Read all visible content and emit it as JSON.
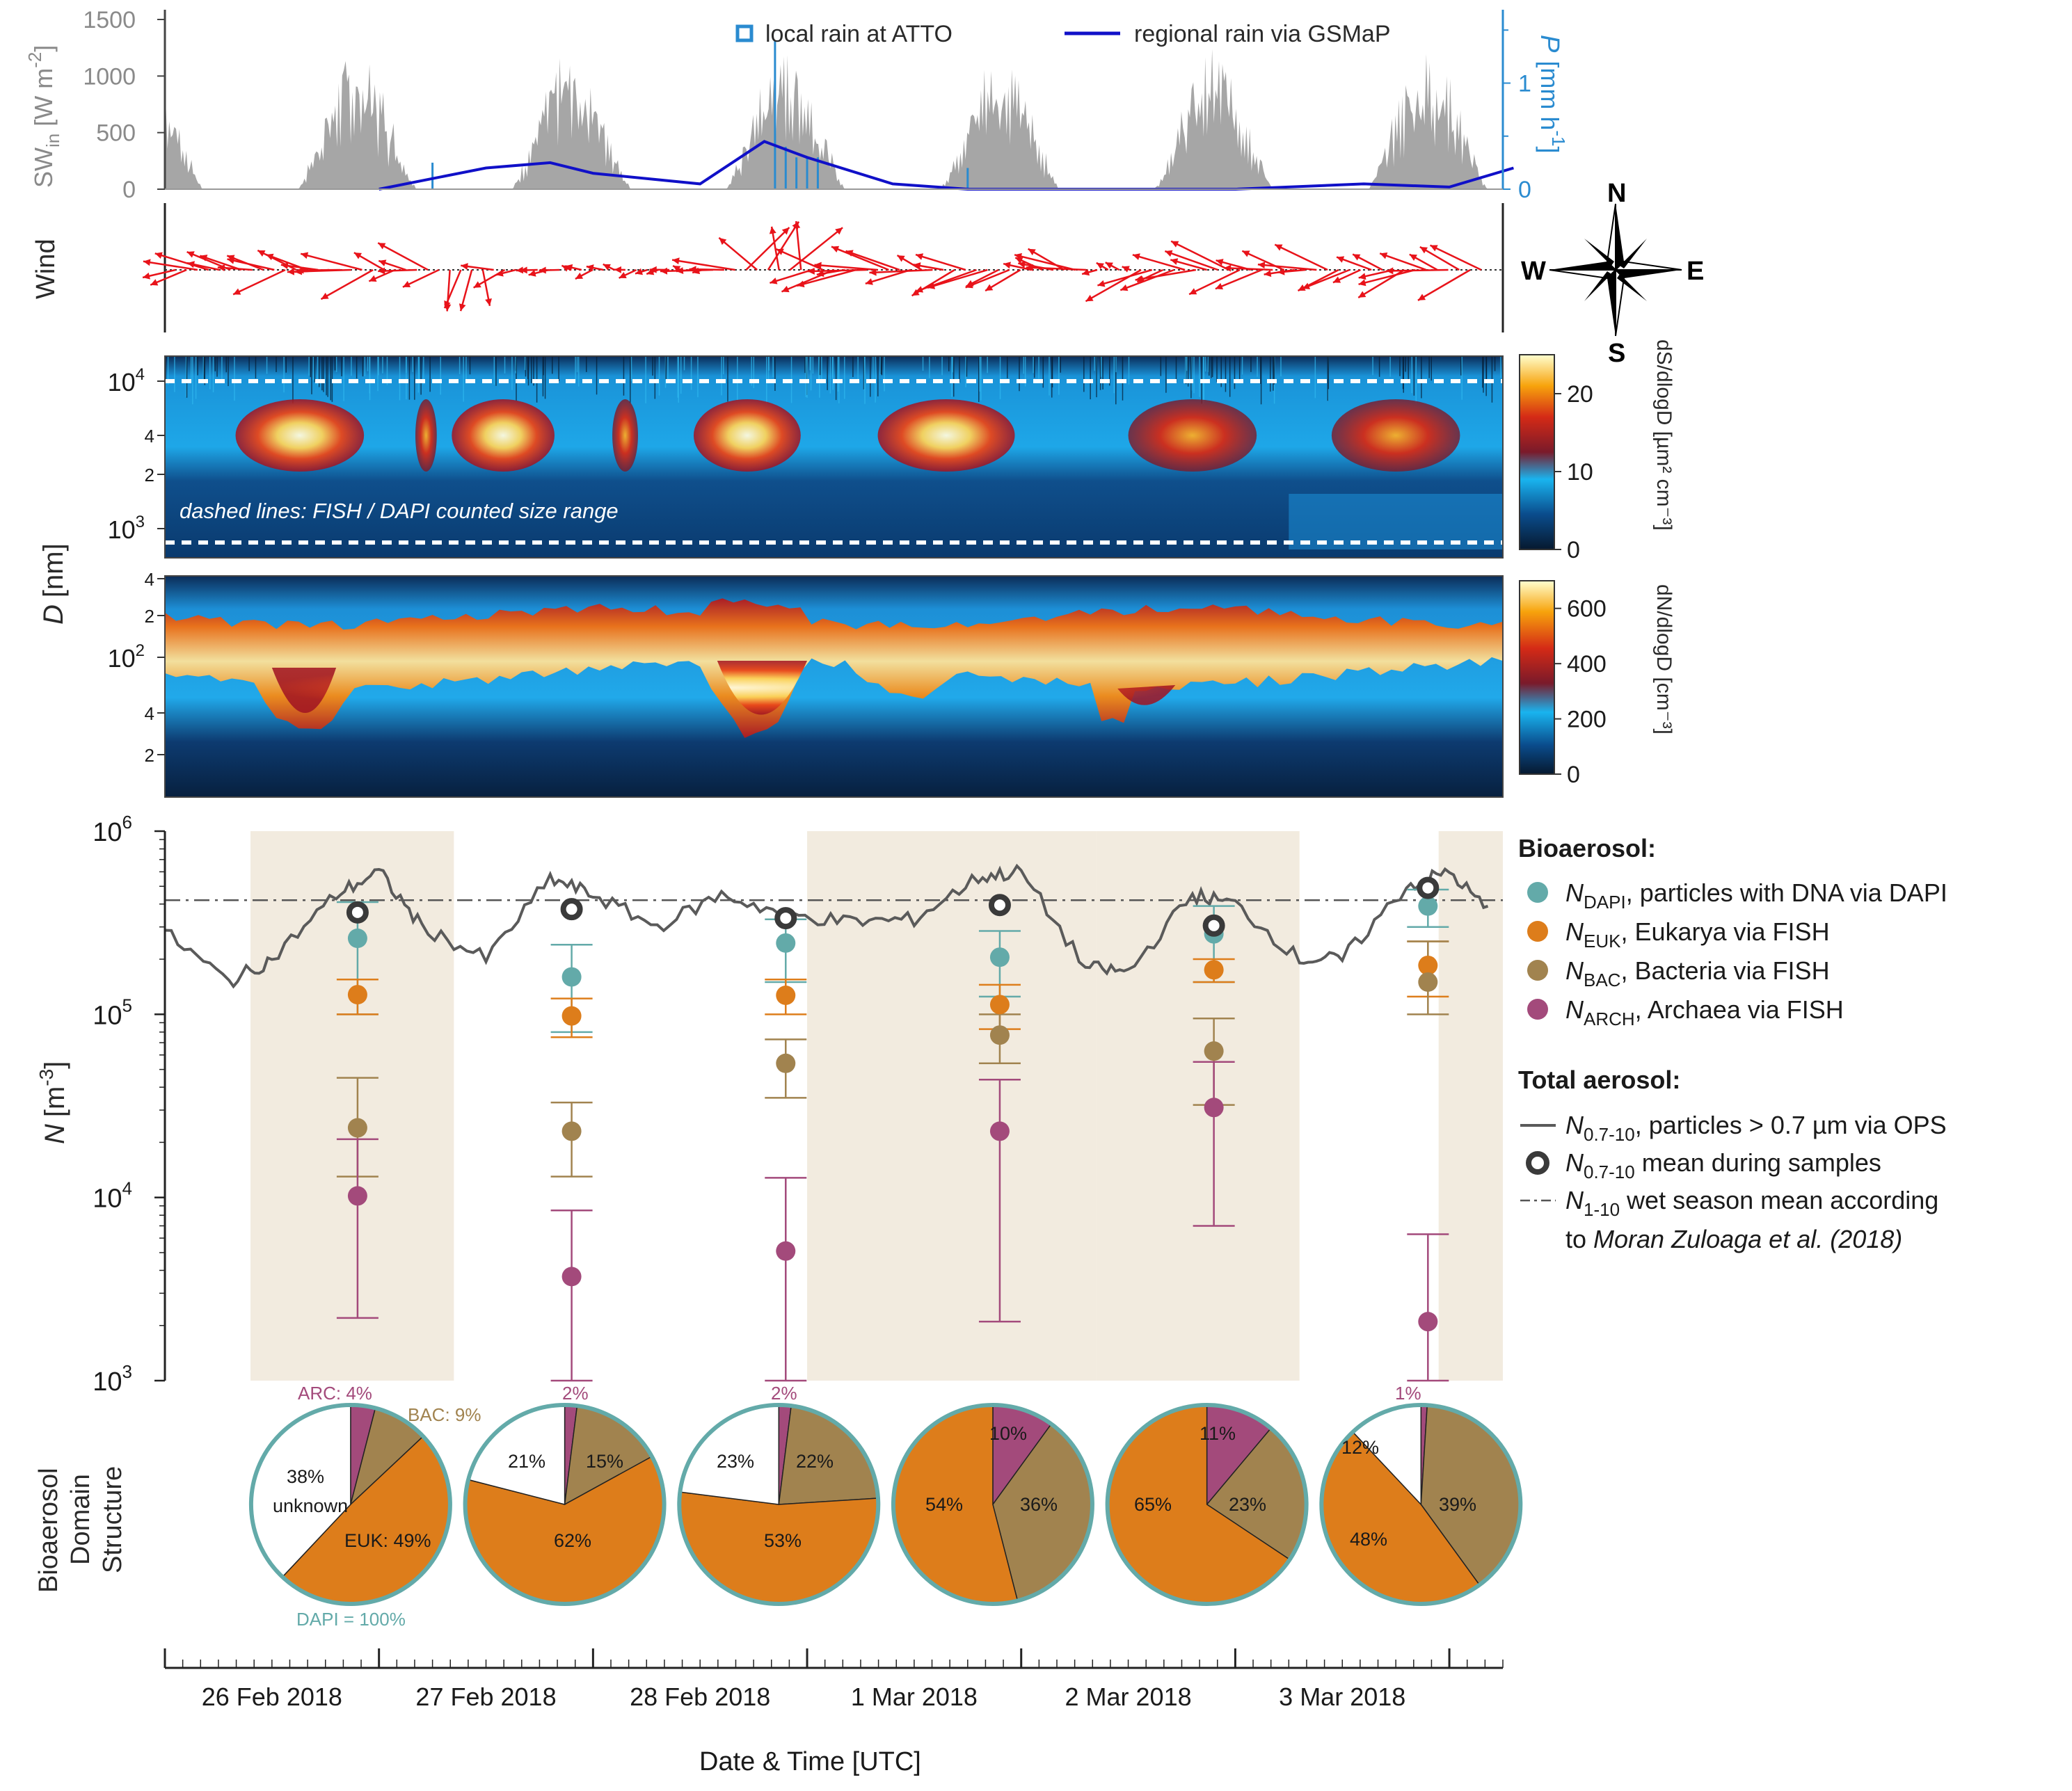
{
  "colors": {
    "swin": "#a6a6a6",
    "gsmap": "#1010c8",
    "rain": "#2a8bd0",
    "wind": "#e8131a",
    "shade": "#f2ebdf",
    "dapi": "#63aaa9",
    "euk": "#dd7d1b",
    "bac": "#a1834f",
    "arch": "#a34a7b",
    "unknown": "#ffffff",
    "ops": "#5a5a5a",
    "pieRim": "#63aaa9",
    "text": "#2a2a2a"
  },
  "panels": {
    "top": {
      "ylabel_main": "SW",
      "ylabel_sub": "in",
      "ylabel_unit": "[W m",
      "ylabel_exp": "-2",
      "ylabel_close": "]",
      "yticks": [
        "0",
        "500",
        "1000",
        "1500"
      ],
      "ylabel_right": "P",
      "ylabel_right_unit": "[mm h",
      "ylabel_right_exp": "-1",
      "ylabel_right_close": "]",
      "yticks_right": [
        "0",
        "1"
      ],
      "legend": {
        "rain": "local rain at ATTO",
        "gsmap": "regional rain via GSMaP"
      }
    },
    "wind": {
      "label": "Wind",
      "compass": {
        "n": "N",
        "s": "S",
        "e": "E",
        "w": "W"
      }
    },
    "ds": {
      "yticks": [
        {
          "t": "10",
          "e": "4"
        },
        {
          "t": "4",
          "e": ""
        },
        {
          "t": "2",
          "e": ""
        },
        {
          "t": "10",
          "e": "3"
        }
      ],
      "cbar_ticks": [
        "0",
        "10",
        "20"
      ],
      "cbar_label": "dS/dlogD [µm² cm⁻³]",
      "note": "dashed lines:  FISH / DAPI counted size range"
    },
    "d_axis": {
      "label": "D",
      "unit": "[nm]"
    },
    "dn": {
      "yticks": [
        {
          "t": "4",
          "e": ""
        },
        {
          "t": "2",
          "e": ""
        },
        {
          "t": "10",
          "e": "2"
        },
        {
          "t": "4",
          "e": ""
        },
        {
          "t": "2",
          "e": ""
        }
      ],
      "cbar_ticks": [
        "0",
        "200",
        "400",
        "600"
      ],
      "cbar_label": "dN/dlogD [cm⁻³]"
    },
    "n": {
      "ylabel": "N",
      "ylabel_unit": "[m",
      "ylabel_exp": "-3",
      "ylabel_close": "]",
      "yticks": [
        {
          "t": "10",
          "e": "3"
        },
        {
          "t": "10",
          "e": "4"
        },
        {
          "t": "10",
          "e": "5"
        },
        {
          "t": "10",
          "e": "6"
        }
      ]
    },
    "pies_label": [
      "Bioaerosol",
      "Domain",
      "Structure"
    ]
  },
  "xaxis": {
    "title": "Date & Time [UTC]",
    "ticks": [
      "26 Feb 2018",
      "27 Feb 2018",
      "28 Feb 2018",
      "1 Mar 2018",
      "2 Mar 2018",
      "3 Mar 2018"
    ]
  },
  "legend": {
    "bio_title": "Bioaerosol:",
    "dapi": {
      "sym": "N",
      "sub": "DAPI",
      "text": ", particles with DNA via DAPI"
    },
    "euk": {
      "sym": "N",
      "sub": "EUK",
      "text": ", Eukarya via FISH"
    },
    "bac": {
      "sym": "N",
      "sub": "BAC",
      "text": ", Bacteria via FISH"
    },
    "arch": {
      "sym": "N",
      "sub": "ARCH",
      "text": ", Archaea via FISH"
    },
    "total_title": "Total aerosol:",
    "ops": {
      "sym": "N",
      "sub": "0.7-10",
      "text": ", particles > 0.7 µm via OPS"
    },
    "opsmean": {
      "sym": "N",
      "sub": "0.7-10",
      "text": " mean during samples"
    },
    "wet": {
      "sym": "N",
      "sub": "1-10",
      "text": " wet season mean according"
    },
    "wet2": {
      "text": "to ",
      "ref": "Moran Zuloaga et al. (2018)"
    }
  },
  "pie_labels": {
    "arc": "ARC: 4%",
    "bac": "BAC: 9%",
    "unknown1": "38%",
    "unknown2": "unknown",
    "euk": "EUK: 49%",
    "dapi": "DAPI = 100%",
    "top2": "2%",
    "top3": "2%",
    "top6": "1%",
    "p2u": "21%",
    "p2b": "15%",
    "p2e": "62%",
    "p3u": "23%",
    "p3b": "22%",
    "p3e": "53%",
    "p4a": "10%",
    "p4e": "54%",
    "p4b": "36%",
    "p5a": "11%",
    "p5e": "65%",
    "p5b": "23%",
    "p6u": "12%",
    "p6e": "48%",
    "p6b": "39%"
  },
  "chart_data": [
    {
      "type": "area",
      "panel": "SW_in and precipitation",
      "series": [
        {
          "name": "SW_in",
          "daily_peaks_W_m2": [
            1250,
            1250,
            1250,
            1250,
            1250,
            1250,
            1250
          ]
        },
        {
          "name": "regional rain via GSMaP",
          "units": "mm h-1",
          "x_days": [
            1.0,
            1.5,
            1.8,
            2.0,
            2.5,
            2.8,
            3.0,
            3.4,
            3.75,
            4.5,
            5.0,
            5.6,
            6.0,
            6.3
          ],
          "y": [
            0,
            0.2,
            0.25,
            0.15,
            0.05,
            0.45,
            0.3,
            0.05,
            0,
            0,
            0,
            0.05,
            0.02,
            0.2
          ]
        },
        {
          "name": "local rain at ATTO",
          "units": "mm h-1",
          "events_days": [
            1.25,
            2.85,
            2.9,
            2.95,
            3.0,
            3.05,
            3.75
          ],
          "values": [
            0.25,
            1.4,
            0.4,
            0.3,
            0.3,
            0.3,
            0.2
          ]
        }
      ],
      "ylim": [
        0,
        1500
      ],
      "ylim_right": [
        0,
        1.6
      ]
    },
    {
      "type": "heatmap",
      "panel": "dS/dlogD",
      "ylim_nm": [
        600,
        15000
      ],
      "clim": [
        0,
        25
      ],
      "note": "dashed lines: FISH / DAPI counted size range"
    },
    {
      "type": "heatmap",
      "panel": "dN/dlogD",
      "ylim_nm": [
        10,
        400
      ],
      "clim": [
        0,
        700
      ]
    },
    {
      "type": "scatter",
      "panel": "Bioaerosol number concentrations",
      "yscale": "log",
      "ylim": [
        1000,
        1000000
      ],
      "samples_center_day": [
        0.9,
        1.9,
        2.9,
        3.9,
        4.9,
        5.9
      ],
      "sample_windows_day": [
        [
          0.4,
          1.35
        ],
        [
          3.0,
          4.35
        ],
        [
          4.35,
          5.3
        ],
        [
          5.95,
          6.25
        ]
      ],
      "series": [
        {
          "name": "N_DAPI",
          "values": [
            260000,
            160000,
            245000,
            205000,
            275000,
            390000
          ],
          "err_low": [
            100000,
            80000,
            150000,
            125000,
            150000,
            300000
          ],
          "err_high": [
            410000,
            240000,
            330000,
            285000,
            390000,
            480000
          ]
        },
        {
          "name": "N_EUK",
          "values": [
            128000,
            98000,
            127000,
            113000,
            175000,
            185000
          ],
          "err_low": [
            100000,
            75000,
            100000,
            83000,
            150000,
            125000
          ],
          "err_high": [
            155000,
            122000,
            155000,
            145000,
            200000,
            250000
          ]
        },
        {
          "name": "N_BAC",
          "values": [
            24000,
            23000,
            54000,
            77000,
            63000,
            150000
          ],
          "err_low": [
            13000,
            13000,
            35000,
            54000,
            32000,
            100000
          ],
          "err_high": [
            45000,
            33000,
            73000,
            100000,
            95000,
            250000
          ]
        },
        {
          "name": "N_ARCH",
          "values": [
            10200,
            3700,
            5100,
            23000,
            31000,
            2100
          ],
          "err_low": [
            2200,
            1000,
            1000,
            2100,
            7000,
            1000
          ],
          "err_high": [
            20800,
            8500,
            12800,
            44000,
            55000,
            6300
          ]
        },
        {
          "name": "N_0.7-10 mean during samples",
          "values": [
            360000,
            375000,
            335000,
            395000,
            305000,
            490000
          ]
        },
        {
          "name": "N_1-10 wet season mean",
          "values": [
            420000
          ]
        }
      ],
      "ops_series": {
        "name": "N_0.7-10 OPS",
        "x_days": [
          0,
          0.3,
          0.5,
          0.8,
          1.0,
          1.2,
          1.5,
          1.8,
          2.0,
          2.3,
          2.6,
          2.9,
          3.2,
          3.5,
          3.8,
          4.0,
          4.3,
          4.5,
          4.8,
          5.0,
          5.3,
          5.5,
          5.8,
          6.0,
          6.2
        ],
        "values": [
          280000,
          150000,
          200000,
          450000,
          600000,
          300000,
          200000,
          550000,
          450000,
          300000,
          450000,
          350000,
          320000,
          330000,
          560000,
          600000,
          180000,
          170000,
          450000,
          400000,
          200000,
          200000,
          500000,
          600000,
          350000
        ]
      }
    },
    {
      "type": "pie",
      "panel": "Bioaerosol Domain Structure",
      "pies": [
        {
          "ARC": 4,
          "BAC": 9,
          "EUK": 49,
          "unknown": 38
        },
        {
          "ARC": 2,
          "BAC": 15,
          "EUK": 62,
          "unknown": 21
        },
        {
          "ARC": 2,
          "BAC": 22,
          "EUK": 53,
          "unknown": 23
        },
        {
          "ARC": 10,
          "BAC": 36,
          "EUK": 54,
          "unknown": 0
        },
        {
          "ARC": 11,
          "BAC": 23,
          "EUK": 65,
          "unknown": 0
        },
        {
          "ARC": 1,
          "BAC": 39,
          "EUK": 48,
          "unknown": 12
        }
      ]
    }
  ]
}
